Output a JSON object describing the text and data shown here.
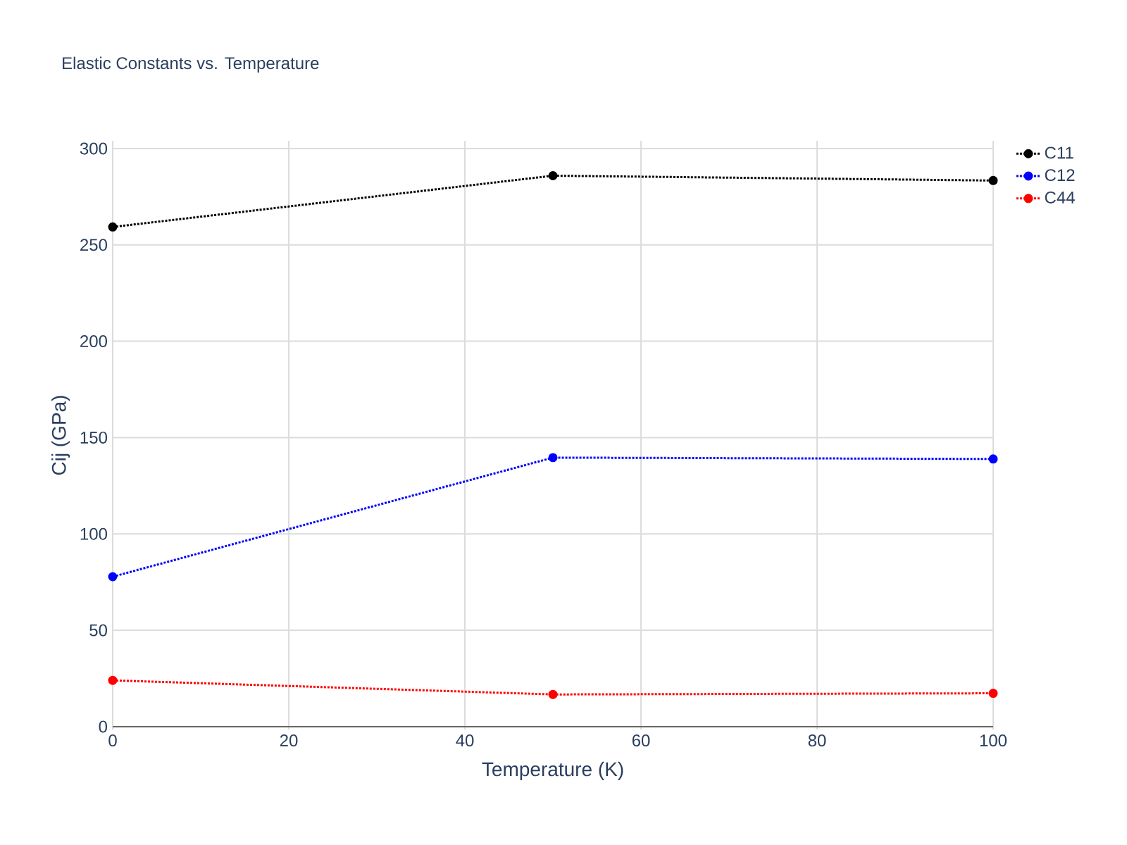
{
  "chart_data": {
    "type": "line",
    "title": "Elastic Constants vs. Temperature",
    "xlabel": "Temperature (K)",
    "ylabel": "Cij (GPa)",
    "x": [
      0,
      50,
      100
    ],
    "series": [
      {
        "name": "C11",
        "color": "#000000",
        "values": [
          259.3,
          285.9,
          283.4
        ]
      },
      {
        "name": "C12",
        "color": "#0000ff",
        "values": [
          77.8,
          139.6,
          138.9
        ]
      },
      {
        "name": "C44",
        "color": "#ff0000",
        "values": [
          24.0,
          16.7,
          17.3
        ]
      }
    ],
    "xlim": [
      0,
      100
    ],
    "ylim": [
      -1.5,
      304
    ],
    "xticks": [
      0,
      20,
      40,
      60,
      80,
      100
    ],
    "yticks": [
      0,
      50,
      100,
      150,
      200,
      250,
      300
    ],
    "grid": true,
    "legend": "top right",
    "marker": "circle",
    "line_style": "dotted"
  }
}
